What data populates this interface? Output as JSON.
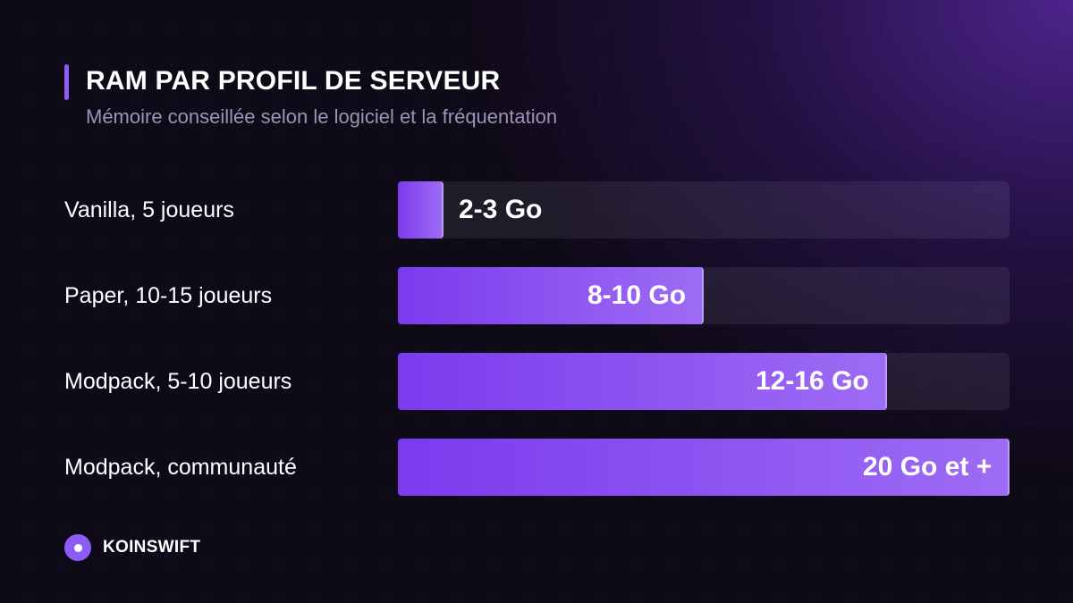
{
  "chart_data": {
    "type": "bar",
    "orientation": "horizontal",
    "title": "RAM PAR PROFIL DE SERVEUR",
    "subtitle": "Mémoire conseillée selon le logiciel et la fréquentation",
    "categories": [
      "Vanilla, 5 joueurs",
      "Paper, 10-15 joueurs",
      "Modpack, 5-10 joueurs",
      "Modpack, communauté"
    ],
    "value_labels": [
      "2-3 Go",
      "8-10 Go",
      "12-16 Go",
      "20 Go et +"
    ],
    "values": [
      3,
      10,
      16,
      20
    ],
    "xlim": [
      0,
      20
    ],
    "grid": false,
    "legend": "none",
    "colors": {
      "bar_start": "#7c3aed",
      "bar_end": "#9d6cf5",
      "accent": "#8b5cf6"
    }
  },
  "brand": {
    "name": "KOINSWIFT",
    "icon": "circle-dot-logo"
  }
}
